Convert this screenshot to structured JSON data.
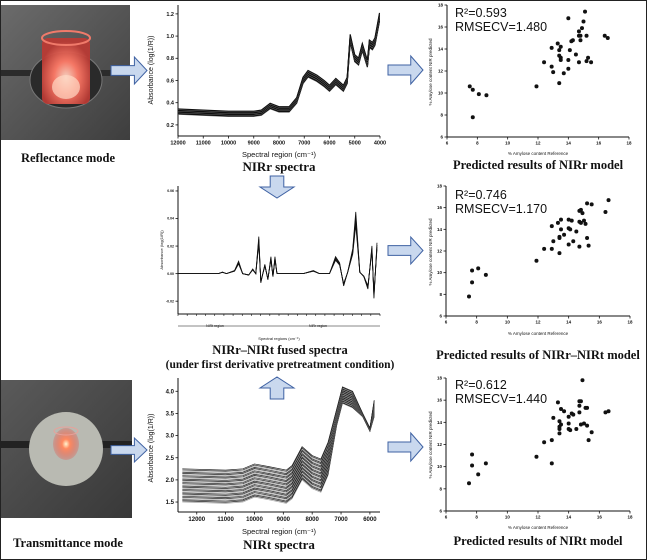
{
  "colors": {
    "arrow_fill": "#c9d8ee",
    "arrow_stroke": "#3f62a3",
    "glow": "#ff6a5a",
    "ink": "#111111"
  },
  "left": {
    "reflectance_label": "Reflectance mode",
    "transmittance_label": "Transmittance mode"
  },
  "spectra": {
    "nirr": {
      "title": "NIRr spectra",
      "xlabel": "Spectral region (cm⁻¹)",
      "ylabel": "Absorbance (log(1/R))",
      "xticks": [
        "12000",
        "11000",
        "10000",
        "9000",
        "8000",
        "7000",
        "6000",
        "5000",
        "4000"
      ],
      "yticks": [
        "0.2",
        "0.4",
        "0.6",
        "0.8",
        "1.0",
        "1.2"
      ]
    },
    "fused": {
      "title": "NIRr–NIRt fused spectra",
      "subtitle": "(under first derivative pretreatment condition)",
      "xlabel": "Spectral regions (cm⁻¹)",
      "ylabel": "Absorbance (log(1/R))",
      "region_left": "NIRt region",
      "region_right": "NIRr region",
      "yticks": [
        "0.06",
        "0.04",
        "0.02",
        "0.00",
        "-0.02"
      ]
    },
    "nirt": {
      "title": "NIRt spectra",
      "xlabel": "Spectral region (cm⁻¹)",
      "ylabel": "Absorbance (log(1/R))",
      "xticks": [
        "12000",
        "11000",
        "10000",
        "9000",
        "8000",
        "7000",
        "6000"
      ],
      "yticks": [
        "1.5",
        "2.0",
        "2.5",
        "3.0",
        "3.5",
        "4.0"
      ]
    }
  },
  "models": [
    {
      "caption": "Predicted results of NIRr model",
      "r2": "R²=0.593",
      "rmsecv": "RMSECV=1.480",
      "xlabel": "% Amylose content Reference",
      "ylabel": "% Amylose content NIR predicted",
      "xlim": [
        6,
        18
      ],
      "ylim": [
        6,
        18
      ],
      "ticks": [
        "6",
        "8",
        "10",
        "12",
        "14",
        "16",
        "18"
      ],
      "points": [
        [
          7.5,
          10.6
        ],
        [
          7.7,
          10.3
        ],
        [
          7.7,
          7.8
        ],
        [
          8.1,
          9.9
        ],
        [
          8.6,
          9.8
        ],
        [
          11.9,
          10.6
        ],
        [
          12.4,
          12.8
        ],
        [
          12.9,
          12.4
        ],
        [
          12.9,
          14.1
        ],
        [
          13.0,
          11.9
        ],
        [
          13.3,
          14.5
        ],
        [
          13.4,
          13.9
        ],
        [
          13.4,
          13.4
        ],
        [
          13.4,
          10.9
        ],
        [
          13.5,
          13.2
        ],
        [
          13.5,
          14.2
        ],
        [
          13.5,
          13.0
        ],
        [
          13.7,
          11.8
        ],
        [
          14.0,
          16.8
        ],
        [
          14.0,
          13.0
        ],
        [
          14.0,
          12.2
        ],
        [
          14.1,
          13.9
        ],
        [
          14.2,
          14.7
        ],
        [
          14.3,
          14.8
        ],
        [
          14.5,
          13.5
        ],
        [
          14.7,
          15.6
        ],
        [
          14.7,
          15.2
        ],
        [
          14.7,
          12.8
        ],
        [
          14.8,
          14.8
        ],
        [
          14.8,
          15.2
        ],
        [
          14.9,
          15.9
        ],
        [
          15.0,
          16.5
        ],
        [
          15.1,
          17.4
        ],
        [
          15.2,
          15.2
        ],
        [
          15.2,
          12.9
        ],
        [
          15.3,
          13.2
        ],
        [
          15.5,
          12.8
        ],
        [
          16.4,
          15.2
        ],
        [
          16.6,
          15.0
        ]
      ]
    },
    {
      "caption": "Predicted results of NIRr–NIRt model",
      "r2": "R²=0.746",
      "rmsecv": "RMSECV=1.170",
      "xlabel": "% Amylose content Reference",
      "ylabel": "% Amylose content NIR predicted",
      "xlim": [
        6,
        18
      ],
      "ylim": [
        6,
        18
      ],
      "ticks": [
        "6",
        "8",
        "10",
        "12",
        "14",
        "16",
        "18"
      ],
      "points": [
        [
          7.5,
          7.8
        ],
        [
          7.7,
          9.1
        ],
        [
          7.7,
          10.2
        ],
        [
          8.1,
          10.4
        ],
        [
          8.6,
          9.8
        ],
        [
          11.9,
          11.1
        ],
        [
          12.4,
          12.2
        ],
        [
          12.9,
          12.2
        ],
        [
          12.9,
          14.3
        ],
        [
          13.0,
          12.9
        ],
        [
          13.3,
          14.6
        ],
        [
          13.4,
          13.3
        ],
        [
          13.4,
          13.2
        ],
        [
          13.4,
          11.8
        ],
        [
          13.5,
          14.9
        ],
        [
          13.5,
          14.0
        ],
        [
          13.7,
          13.5
        ],
        [
          14.0,
          14.9
        ],
        [
          14.0,
          14.1
        ],
        [
          14.0,
          12.6
        ],
        [
          14.1,
          14.0
        ],
        [
          14.2,
          14.8
        ],
        [
          14.3,
          12.9
        ],
        [
          14.5,
          13.8
        ],
        [
          14.7,
          15.7
        ],
        [
          14.7,
          14.7
        ],
        [
          14.7,
          12.4
        ],
        [
          14.8,
          15.8
        ],
        [
          14.8,
          14.6
        ],
        [
          14.9,
          15.5
        ],
        [
          15.0,
          14.8
        ],
        [
          15.1,
          14.5
        ],
        [
          15.2,
          16.4
        ],
        [
          15.2,
          13.2
        ],
        [
          15.3,
          12.5
        ],
        [
          15.5,
          16.3
        ],
        [
          16.4,
          15.6
        ],
        [
          16.6,
          16.7
        ]
      ]
    },
    {
      "caption": "Predicted results of NIRt model",
      "r2": "R²=0.612",
      "rmsecv": "RMSECV=1.440",
      "xlabel": "% Amylose content Reference",
      "ylabel": "% Amylose content NIR predicted",
      "xlim": [
        6,
        18
      ],
      "ylim": [
        6,
        18
      ],
      "ticks": [
        "6",
        "8",
        "10",
        "12",
        "14",
        "16",
        "18"
      ],
      "points": [
        [
          7.5,
          8.5
        ],
        [
          7.7,
          11.1
        ],
        [
          7.7,
          10.1
        ],
        [
          8.1,
          9.3
        ],
        [
          8.6,
          10.3
        ],
        [
          11.9,
          10.9
        ],
        [
          12.4,
          12.2
        ],
        [
          12.9,
          12.4
        ],
        [
          12.9,
          10.3
        ],
        [
          13.0,
          14.4
        ],
        [
          13.3,
          15.8
        ],
        [
          13.4,
          14.1
        ],
        [
          13.4,
          13.6
        ],
        [
          13.4,
          13.4
        ],
        [
          13.4,
          13.0
        ],
        [
          13.5,
          15.2
        ],
        [
          13.5,
          13.8
        ],
        [
          13.7,
          15.0
        ],
        [
          14.0,
          14.5
        ],
        [
          14.0,
          13.9
        ],
        [
          14.0,
          13.4
        ],
        [
          14.1,
          13.3
        ],
        [
          14.2,
          14.8
        ],
        [
          14.3,
          14.7
        ],
        [
          14.5,
          13.4
        ],
        [
          14.7,
          15.9
        ],
        [
          14.7,
          15.5
        ],
        [
          14.7,
          14.9
        ],
        [
          14.8,
          15.9
        ],
        [
          14.8,
          13.8
        ],
        [
          14.9,
          17.8
        ],
        [
          15.0,
          13.9
        ],
        [
          15.1,
          15.3
        ],
        [
          15.2,
          15.3
        ],
        [
          15.2,
          13.7
        ],
        [
          15.3,
          12.4
        ],
        [
          15.5,
          13.1
        ],
        [
          16.4,
          14.9
        ],
        [
          16.6,
          15.0
        ]
      ]
    }
  ]
}
